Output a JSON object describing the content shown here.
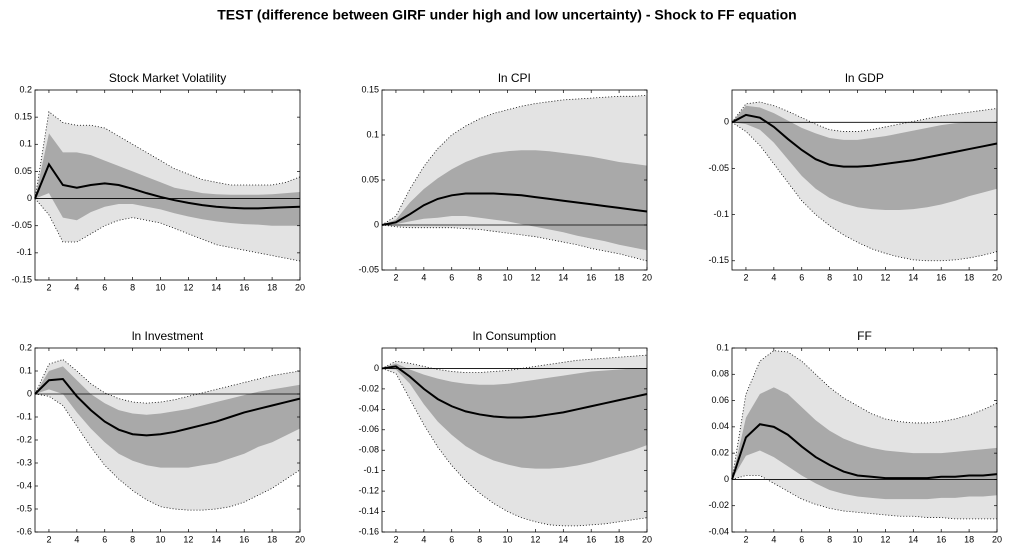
{
  "title": "TEST (difference between GIRF under high and low uncertainty) - Shock to FF equation",
  "chart_data": [
    {
      "type": "fan",
      "title": "Stock Market Volatility",
      "x": [
        1,
        2,
        3,
        4,
        5,
        6,
        7,
        8,
        9,
        10,
        11,
        12,
        13,
        14,
        15,
        16,
        17,
        18,
        19,
        20
      ],
      "values": [
        0,
        0.063,
        0.025,
        0.02,
        0.025,
        0.028,
        0.025,
        0.018,
        0.01,
        0.003,
        -0.003,
        -0.008,
        -0.012,
        -0.015,
        -0.017,
        -0.018,
        -0.018,
        -0.017,
        -0.016,
        -0.015
      ],
      "inner_upper": [
        0,
        0.12,
        0.085,
        0.085,
        0.08,
        0.07,
        0.06,
        0.05,
        0.04,
        0.03,
        0.02,
        0.015,
        0.01,
        0.008,
        0.007,
        0.007,
        0.007,
        0.008,
        0.01,
        0.012
      ],
      "inner_lower": [
        0,
        0.01,
        -0.035,
        -0.04,
        -0.025,
        -0.015,
        -0.01,
        -0.01,
        -0.015,
        -0.02,
        -0.027,
        -0.033,
        -0.038,
        -0.042,
        -0.045,
        -0.047,
        -0.048,
        -0.05,
        -0.05,
        -0.05
      ],
      "outer_upper": [
        0,
        0.16,
        0.14,
        0.135,
        0.135,
        0.13,
        0.115,
        0.1,
        0.085,
        0.07,
        0.055,
        0.045,
        0.035,
        0.03,
        0.025,
        0.025,
        0.025,
        0.025,
        0.03,
        0.04
      ],
      "outer_lower": [
        0,
        -0.03,
        -0.08,
        -0.08,
        -0.065,
        -0.05,
        -0.04,
        -0.035,
        -0.04,
        -0.045,
        -0.055,
        -0.065,
        -0.075,
        -0.085,
        -0.09,
        -0.095,
        -0.1,
        -0.105,
        -0.11,
        -0.115
      ],
      "xlim": [
        1,
        20
      ],
      "xticks": [
        2,
        4,
        6,
        8,
        10,
        12,
        14,
        16,
        18,
        20
      ],
      "ylim": [
        -0.15,
        0.2
      ],
      "yticks": [
        -0.15,
        -0.1,
        -0.05,
        0,
        0.05,
        0.1,
        0.15,
        0.2
      ],
      "line_color": "#000000",
      "inner_color": "#a9a9a9",
      "outer_color": "#e3e3e3"
    },
    {
      "type": "fan",
      "title": "ln CPI",
      "x": [
        1,
        2,
        3,
        4,
        5,
        6,
        7,
        8,
        9,
        10,
        11,
        12,
        13,
        14,
        15,
        16,
        17,
        18,
        19,
        20
      ],
      "values": [
        0,
        0.003,
        0.012,
        0.022,
        0.029,
        0.033,
        0.035,
        0.035,
        0.035,
        0.034,
        0.033,
        0.031,
        0.029,
        0.027,
        0.025,
        0.023,
        0.021,
        0.019,
        0.017,
        0.015
      ],
      "inner_upper": [
        0,
        0.006,
        0.025,
        0.04,
        0.052,
        0.062,
        0.07,
        0.076,
        0.08,
        0.082,
        0.083,
        0.083,
        0.082,
        0.08,
        0.078,
        0.076,
        0.073,
        0.07,
        0.068,
        0.066
      ],
      "inner_lower": [
        0,
        0.001,
        0.004,
        0.007,
        0.008,
        0.01,
        0.01,
        0.008,
        0.006,
        0.004,
        0.001,
        -0.002,
        -0.005,
        -0.008,
        -0.012,
        -0.015,
        -0.018,
        -0.022,
        -0.025,
        -0.028
      ],
      "outer_upper": [
        0,
        0.01,
        0.04,
        0.065,
        0.085,
        0.1,
        0.11,
        0.118,
        0.124,
        0.128,
        0.132,
        0.135,
        0.137,
        0.139,
        0.14,
        0.141,
        0.142,
        0.143,
        0.143,
        0.144
      ],
      "outer_lower": [
        0,
        -0.002,
        -0.003,
        -0.003,
        -0.003,
        -0.003,
        -0.004,
        -0.005,
        -0.007,
        -0.009,
        -0.011,
        -0.013,
        -0.016,
        -0.019,
        -0.022,
        -0.026,
        -0.029,
        -0.032,
        -0.036,
        -0.04
      ],
      "xlim": [
        1,
        20
      ],
      "xticks": [
        2,
        4,
        6,
        8,
        10,
        12,
        14,
        16,
        18,
        20
      ],
      "ylim": [
        -0.05,
        0.15
      ],
      "yticks": [
        -0.05,
        0,
        0.05,
        0.1,
        0.15
      ],
      "line_color": "#000000",
      "inner_color": "#a9a9a9",
      "outer_color": "#e3e3e3"
    },
    {
      "type": "fan",
      "title": "ln GDP",
      "x": [
        1,
        2,
        3,
        4,
        5,
        6,
        7,
        8,
        9,
        10,
        11,
        12,
        13,
        14,
        15,
        16,
        17,
        18,
        19,
        20
      ],
      "values": [
        0,
        0.008,
        0.005,
        -0.005,
        -0.018,
        -0.03,
        -0.04,
        -0.046,
        -0.048,
        -0.048,
        -0.047,
        -0.045,
        -0.043,
        -0.041,
        -0.038,
        -0.035,
        -0.032,
        -0.029,
        -0.026,
        -0.023
      ],
      "inner_upper": [
        0,
        0.018,
        0.016,
        0.01,
        0.002,
        -0.006,
        -0.012,
        -0.017,
        -0.019,
        -0.019,
        -0.017,
        -0.015,
        -0.012,
        -0.009,
        -0.006,
        -0.003,
        -0.001,
        0,
        0,
        0
      ],
      "inner_lower": [
        0,
        -0.002,
        -0.008,
        -0.022,
        -0.04,
        -0.058,
        -0.072,
        -0.082,
        -0.088,
        -0.092,
        -0.094,
        -0.095,
        -0.095,
        -0.094,
        -0.092,
        -0.089,
        -0.085,
        -0.08,
        -0.076,
        -0.072
      ],
      "outer_upper": [
        0,
        0.02,
        0.022,
        0.018,
        0.012,
        0.005,
        -0.002,
        -0.008,
        -0.01,
        -0.01,
        -0.008,
        -0.005,
        -0.002,
        0.001,
        0.004,
        0.007,
        0.009,
        0.011,
        0.013,
        0.015
      ],
      "outer_lower": [
        0,
        -0.01,
        -0.025,
        -0.045,
        -0.065,
        -0.085,
        -0.1,
        -0.112,
        -0.122,
        -0.13,
        -0.137,
        -0.142,
        -0.146,
        -0.149,
        -0.15,
        -0.15,
        -0.149,
        -0.147,
        -0.144,
        -0.14
      ],
      "xlim": [
        1,
        20
      ],
      "xticks": [
        2,
        4,
        6,
        8,
        10,
        12,
        14,
        16,
        18,
        20
      ],
      "ylim": [
        -0.16,
        0.035
      ],
      "yticks": [
        -0.15,
        -0.1,
        -0.05,
        0
      ],
      "line_color": "#000000",
      "inner_color": "#a9a9a9",
      "outer_color": "#e3e3e3"
    },
    {
      "type": "fan",
      "title": "ln Investment",
      "x": [
        1,
        2,
        3,
        4,
        5,
        6,
        7,
        8,
        9,
        10,
        11,
        12,
        13,
        14,
        15,
        16,
        17,
        18,
        19,
        20
      ],
      "values": [
        0,
        0.06,
        0.065,
        -0.01,
        -0.07,
        -0.12,
        -0.155,
        -0.175,
        -0.18,
        -0.175,
        -0.165,
        -0.15,
        -0.135,
        -0.12,
        -0.1,
        -0.08,
        -0.065,
        -0.05,
        -0.035,
        -0.02
      ],
      "inner_upper": [
        0,
        0.1,
        0.12,
        0.06,
        0,
        -0.04,
        -0.07,
        -0.085,
        -0.09,
        -0.085,
        -0.075,
        -0.065,
        -0.05,
        -0.035,
        -0.02,
        -0.005,
        0.01,
        0.02,
        0.03,
        0.04
      ],
      "inner_lower": [
        0,
        0.02,
        0,
        -0.08,
        -0.15,
        -0.21,
        -0.26,
        -0.29,
        -0.31,
        -0.32,
        -0.32,
        -0.32,
        -0.31,
        -0.3,
        -0.28,
        -0.26,
        -0.23,
        -0.21,
        -0.18,
        -0.15
      ],
      "outer_upper": [
        0,
        0.13,
        0.15,
        0.1,
        0.045,
        0.005,
        -0.02,
        -0.035,
        -0.04,
        -0.035,
        -0.025,
        -0.01,
        0.005,
        0.02,
        0.035,
        0.05,
        0.065,
        0.08,
        0.09,
        0.1
      ],
      "outer_lower": [
        0,
        -0.01,
        -0.05,
        -0.14,
        -0.23,
        -0.31,
        -0.37,
        -0.42,
        -0.46,
        -0.49,
        -0.5,
        -0.505,
        -0.505,
        -0.5,
        -0.49,
        -0.47,
        -0.44,
        -0.41,
        -0.37,
        -0.33
      ],
      "xlim": [
        1,
        20
      ],
      "xticks": [
        2,
        4,
        6,
        8,
        10,
        12,
        14,
        16,
        18,
        20
      ],
      "ylim": [
        -0.6,
        0.2
      ],
      "yticks": [
        -0.6,
        -0.5,
        -0.4,
        -0.3,
        -0.2,
        -0.1,
        0,
        0.1,
        0.2
      ],
      "line_color": "#000000",
      "inner_color": "#a9a9a9",
      "outer_color": "#e3e3e3"
    },
    {
      "type": "fan",
      "title": "ln Consumption",
      "x": [
        1,
        2,
        3,
        4,
        5,
        6,
        7,
        8,
        9,
        10,
        11,
        12,
        13,
        14,
        15,
        16,
        17,
        18,
        19,
        20
      ],
      "values": [
        0,
        0.002,
        -0.008,
        -0.02,
        -0.03,
        -0.037,
        -0.042,
        -0.045,
        -0.047,
        -0.048,
        -0.048,
        -0.047,
        -0.045,
        -0.043,
        -0.04,
        -0.037,
        -0.034,
        -0.031,
        -0.028,
        -0.025
      ],
      "inner_upper": [
        0,
        0.005,
        -0.001,
        -0.006,
        -0.01,
        -0.013,
        -0.015,
        -0.016,
        -0.016,
        -0.015,
        -0.013,
        -0.011,
        -0.009,
        -0.007,
        -0.005,
        -0.003,
        -0.002,
        -0.001,
        0,
        0
      ],
      "inner_lower": [
        0,
        -0.001,
        -0.015,
        -0.035,
        -0.052,
        -0.065,
        -0.076,
        -0.084,
        -0.09,
        -0.094,
        -0.097,
        -0.098,
        -0.098,
        -0.097,
        -0.095,
        -0.092,
        -0.088,
        -0.084,
        -0.08,
        -0.075
      ],
      "outer_upper": [
        0,
        0.007,
        0.005,
        0.002,
        -0.001,
        -0.003,
        -0.004,
        -0.004,
        -0.003,
        -0.002,
        0,
        0.002,
        0.004,
        0.006,
        0.008,
        0.009,
        0.01,
        0.011,
        0.012,
        0.013
      ],
      "outer_lower": [
        0,
        -0.005,
        -0.03,
        -0.055,
        -0.077,
        -0.095,
        -0.11,
        -0.122,
        -0.132,
        -0.14,
        -0.146,
        -0.15,
        -0.153,
        -0.154,
        -0.154,
        -0.153,
        -0.152,
        -0.15,
        -0.148,
        -0.146
      ],
      "xlim": [
        1,
        20
      ],
      "xticks": [
        2,
        4,
        6,
        8,
        10,
        12,
        14,
        16,
        18,
        20
      ],
      "ylim": [
        -0.16,
        0.02
      ],
      "yticks": [
        -0.16,
        -0.14,
        -0.12,
        -0.1,
        -0.08,
        -0.06,
        -0.04,
        -0.02,
        0
      ],
      "line_color": "#000000",
      "inner_color": "#a9a9a9",
      "outer_color": "#e3e3e3"
    },
    {
      "type": "fan",
      "title": "FF",
      "x": [
        1,
        2,
        3,
        4,
        5,
        6,
        7,
        8,
        9,
        10,
        11,
        12,
        13,
        14,
        15,
        16,
        17,
        18,
        19,
        20
      ],
      "values": [
        0,
        0.032,
        0.042,
        0.04,
        0.034,
        0.025,
        0.017,
        0.011,
        0.006,
        0.003,
        0.002,
        0.001,
        0.001,
        0.001,
        0.001,
        0.002,
        0.002,
        0.003,
        0.003,
        0.004
      ],
      "inner_upper": [
        0,
        0.047,
        0.065,
        0.07,
        0.065,
        0.055,
        0.045,
        0.037,
        0.031,
        0.027,
        0.024,
        0.022,
        0.021,
        0.02,
        0.02,
        0.02,
        0.021,
        0.022,
        0.023,
        0.024
      ],
      "inner_lower": [
        0,
        0.018,
        0.022,
        0.017,
        0.01,
        0.003,
        -0.003,
        -0.008,
        -0.011,
        -0.013,
        -0.014,
        -0.015,
        -0.015,
        -0.015,
        -0.015,
        -0.014,
        -0.014,
        -0.013,
        -0.013,
        -0.012
      ],
      "outer_upper": [
        0,
        0.065,
        0.09,
        0.098,
        0.097,
        0.09,
        0.08,
        0.07,
        0.062,
        0.056,
        0.05,
        0.046,
        0.044,
        0.043,
        0.043,
        0.044,
        0.046,
        0.049,
        0.053,
        0.058
      ],
      "outer_lower": [
        0,
        0.003,
        0.003,
        -0.003,
        -0.009,
        -0.015,
        -0.019,
        -0.022,
        -0.024,
        -0.025,
        -0.026,
        -0.027,
        -0.028,
        -0.028,
        -0.029,
        -0.029,
        -0.03,
        -0.03,
        -0.03,
        -0.03
      ],
      "xlim": [
        1,
        20
      ],
      "xticks": [
        2,
        4,
        6,
        8,
        10,
        12,
        14,
        16,
        18,
        20
      ],
      "ylim": [
        -0.04,
        0.1
      ],
      "yticks": [
        -0.04,
        -0.02,
        0,
        0.02,
        0.04,
        0.06,
        0.08,
        0.1
      ],
      "line_color": "#000000",
      "inner_color": "#a9a9a9",
      "outer_color": "#e3e3e3"
    }
  ]
}
